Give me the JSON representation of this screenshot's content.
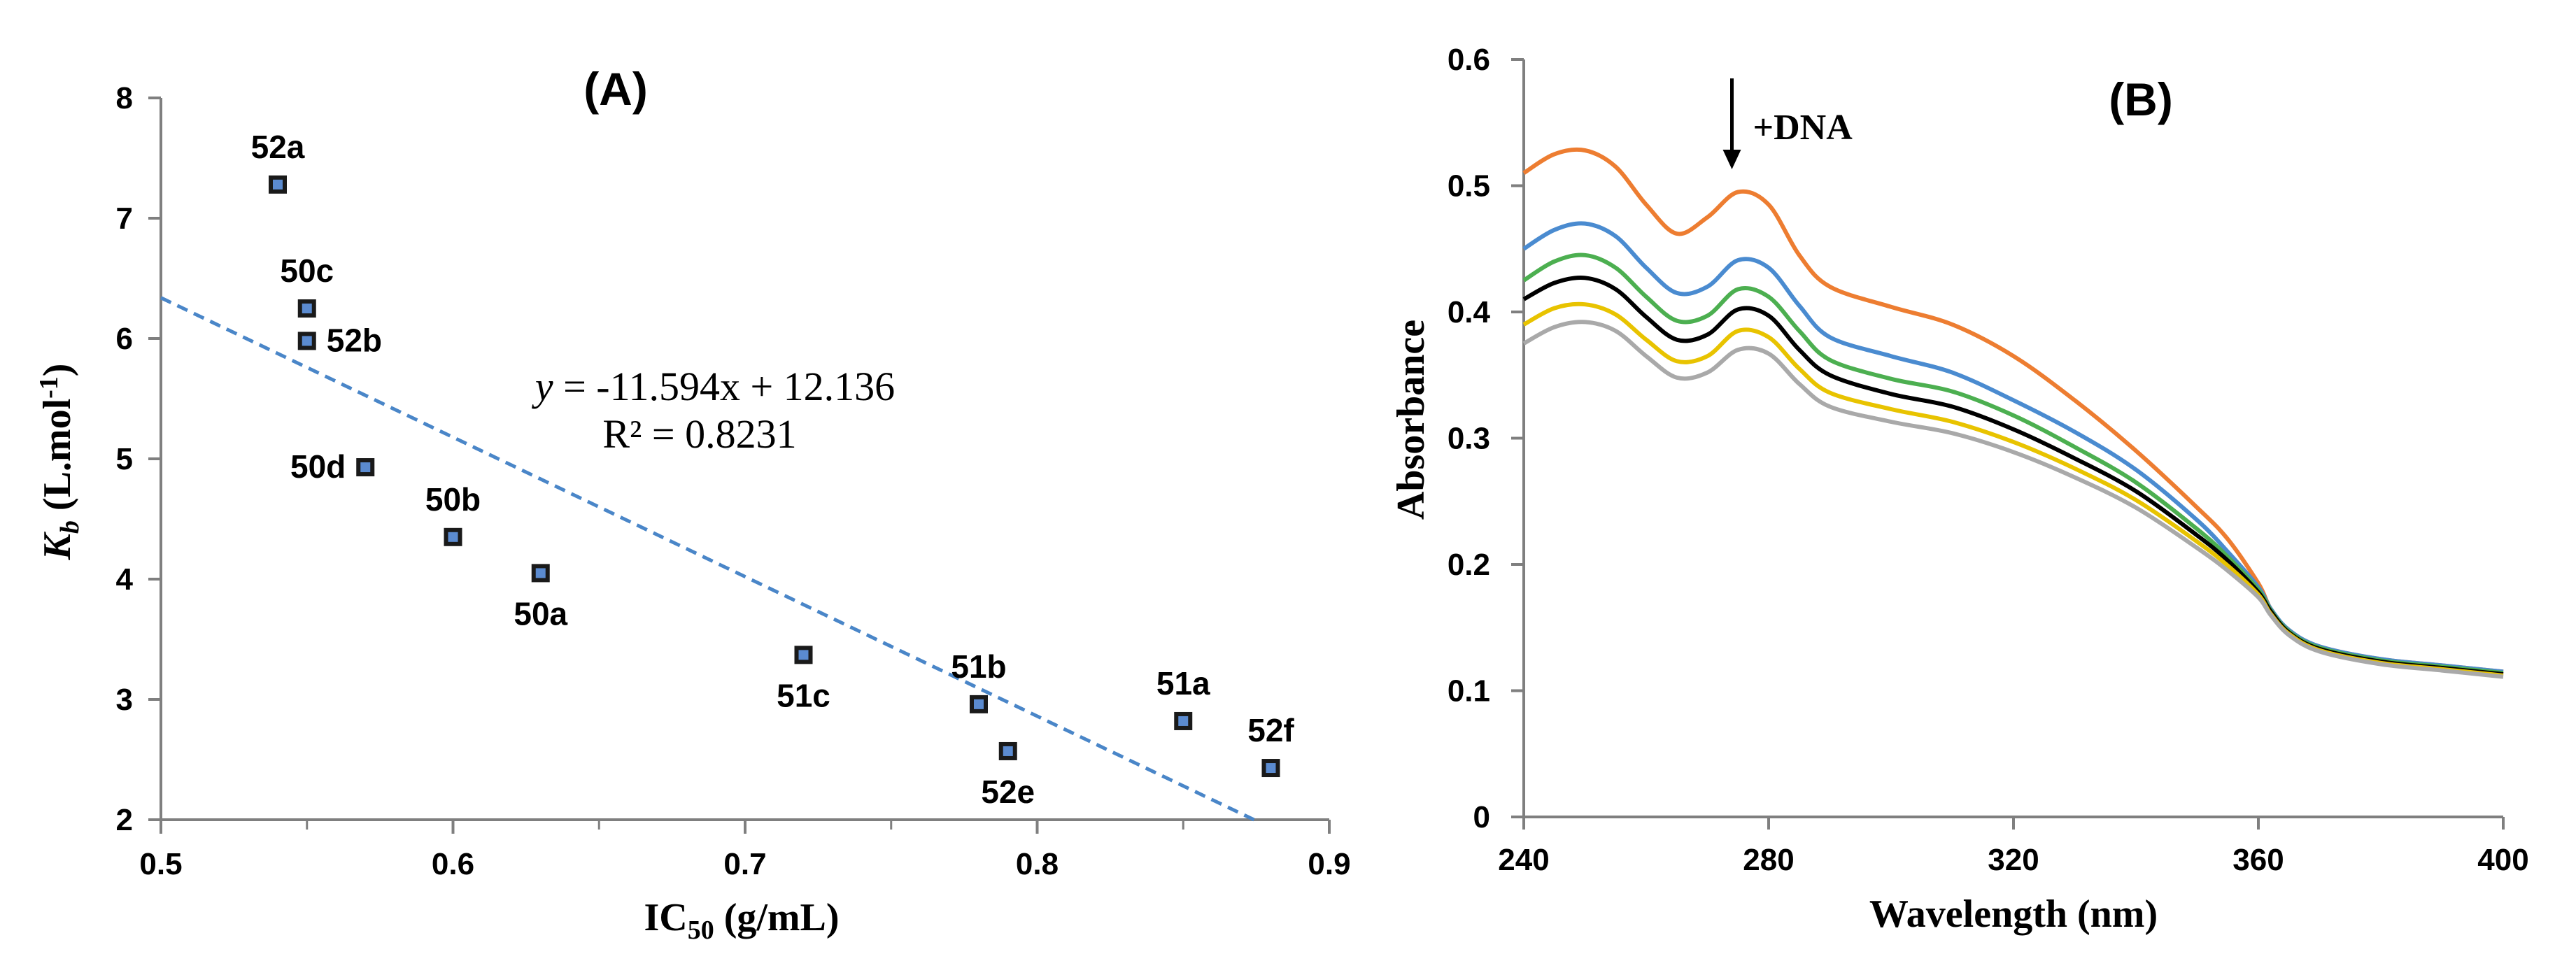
{
  "chart_data": [
    {
      "type": "scatter",
      "panel_label": "(A)",
      "xlabel": {
        "main": "IC",
        "sub": "50",
        "rest": " (g/mL)"
      },
      "ylabel": {
        "main": "K",
        "sub": "b",
        "rest": " (L.mol",
        "sup": "-1",
        "close": ")"
      },
      "xlim": [
        0.5,
        0.9
      ],
      "ylim": [
        2,
        8
      ],
      "x_ticks": [
        0.5,
        0.6,
        0.7,
        0.8,
        0.9
      ],
      "x_tick_labels": [
        "0.5",
        "0.6",
        "0.7",
        "0.8",
        "0.9"
      ],
      "y_ticks": [
        2,
        3,
        4,
        5,
        6,
        7,
        8
      ],
      "y_tick_labels": [
        "2",
        "3",
        "4",
        "5",
        "6",
        "7",
        "8"
      ],
      "points": [
        {
          "label": "52a",
          "x": 0.54,
          "y": 7.28,
          "label_pos": "above"
        },
        {
          "label": "50c",
          "x": 0.55,
          "y": 6.25,
          "label_pos": "above"
        },
        {
          "label": "52b",
          "x": 0.55,
          "y": 5.98,
          "label_pos": "right"
        },
        {
          "label": "50d",
          "x": 0.57,
          "y": 4.93,
          "label_pos": "left"
        },
        {
          "label": "50b",
          "x": 0.6,
          "y": 4.35,
          "label_pos": "above"
        },
        {
          "label": "50a",
          "x": 0.63,
          "y": 4.05,
          "label_pos": "below"
        },
        {
          "label": "51c",
          "x": 0.72,
          "y": 3.37,
          "label_pos": "below"
        },
        {
          "label": "51b",
          "x": 0.78,
          "y": 2.96,
          "label_pos": "above"
        },
        {
          "label": "52e",
          "x": 0.79,
          "y": 2.57,
          "label_pos": "below"
        },
        {
          "label": "51a",
          "x": 0.85,
          "y": 2.82,
          "label_pos": "above"
        },
        {
          "label": "52f",
          "x": 0.88,
          "y": 2.43,
          "label_pos": "above"
        }
      ],
      "trendline": {
        "slope": -11.594,
        "intercept": 12.136,
        "x_start": 0.5,
        "color": "#4a86c8"
      },
      "equation": "-11.594x + 12.136",
      "r_squared": "R² = 0.8231",
      "marker_color": "#1a1a1a",
      "marker_fill": "#5b8bd0"
    },
    {
      "type": "line",
      "panel_label": "(B)",
      "xlabel": "Wavelength (nm)",
      "ylabel": "Absorbance",
      "xlim": [
        240,
        400
      ],
      "ylim": [
        0,
        0.6
      ],
      "x_ticks": [
        240,
        280,
        320,
        360,
        400
      ],
      "x_tick_labels": [
        "240",
        "280",
        "320",
        "360",
        "400"
      ],
      "y_ticks": [
        0,
        0.1,
        0.2,
        0.3,
        0.4,
        0.5,
        0.6
      ],
      "y_tick_labels": [
        "0",
        "0.1",
        "0.2",
        "0.3",
        "0.4",
        "0.5",
        "0.6"
      ],
      "annotation": {
        "text": "+DNA",
        "x": 274,
        "y_from": 0.585,
        "y_to": 0.513
      },
      "series": [
        {
          "name": "orange",
          "color": "#ed7d31",
          "x": [
            240,
            245,
            250,
            255,
            260,
            265,
            270,
            275,
            280,
            285,
            290,
            300,
            310,
            320,
            330,
            340,
            350,
            355,
            360,
            362,
            365,
            370,
            380,
            390,
            400
          ],
          "y": [
            0.51,
            0.525,
            0.528,
            0.515,
            0.485,
            0.462,
            0.475,
            0.495,
            0.485,
            0.445,
            0.42,
            0.404,
            0.39,
            0.365,
            0.33,
            0.29,
            0.245,
            0.22,
            0.185,
            0.165,
            0.148,
            0.135,
            0.125,
            0.12,
            0.115
          ]
        },
        {
          "name": "blue",
          "color": "#4a8bd0",
          "x": [
            240,
            245,
            250,
            255,
            260,
            265,
            270,
            275,
            280,
            285,
            290,
            300,
            310,
            320,
            330,
            340,
            350,
            355,
            360,
            362,
            365,
            370,
            380,
            390,
            400
          ],
          "y": [
            0.45,
            0.465,
            0.47,
            0.46,
            0.435,
            0.415,
            0.42,
            0.441,
            0.435,
            0.405,
            0.38,
            0.365,
            0.352,
            0.33,
            0.305,
            0.275,
            0.235,
            0.21,
            0.182,
            0.165,
            0.148,
            0.135,
            0.125,
            0.12,
            0.115
          ]
        },
        {
          "name": "green",
          "color": "#4caf50",
          "x": [
            240,
            245,
            250,
            255,
            260,
            265,
            270,
            275,
            280,
            285,
            290,
            300,
            310,
            320,
            330,
            340,
            350,
            355,
            360,
            362,
            365,
            370,
            380,
            390,
            400
          ],
          "y": [
            0.425,
            0.44,
            0.445,
            0.435,
            0.412,
            0.393,
            0.397,
            0.418,
            0.412,
            0.385,
            0.362,
            0.347,
            0.337,
            0.318,
            0.293,
            0.265,
            0.228,
            0.206,
            0.18,
            0.164,
            0.147,
            0.134,
            0.124,
            0.119,
            0.114
          ]
        },
        {
          "name": "black",
          "color": "#000000",
          "x": [
            240,
            245,
            250,
            255,
            260,
            265,
            270,
            275,
            280,
            285,
            290,
            300,
            310,
            320,
            330,
            340,
            350,
            355,
            360,
            362,
            365,
            370,
            380,
            390,
            400
          ],
          "y": [
            0.41,
            0.423,
            0.427,
            0.418,
            0.396,
            0.378,
            0.382,
            0.402,
            0.397,
            0.37,
            0.35,
            0.335,
            0.325,
            0.307,
            0.284,
            0.258,
            0.223,
            0.203,
            0.178,
            0.163,
            0.146,
            0.133,
            0.123,
            0.118,
            0.113
          ]
        },
        {
          "name": "yellow",
          "color": "#e8c300",
          "x": [
            240,
            245,
            250,
            255,
            260,
            265,
            270,
            275,
            280,
            285,
            290,
            300,
            310,
            320,
            330,
            340,
            350,
            355,
            360,
            362,
            365,
            370,
            380,
            390,
            400
          ],
          "y": [
            0.39,
            0.403,
            0.406,
            0.398,
            0.378,
            0.361,
            0.365,
            0.385,
            0.38,
            0.355,
            0.336,
            0.323,
            0.313,
            0.297,
            0.276,
            0.251,
            0.218,
            0.199,
            0.176,
            0.161,
            0.145,
            0.132,
            0.122,
            0.117,
            0.112
          ]
        },
        {
          "name": "gray",
          "color": "#a9a9a9",
          "x": [
            240,
            245,
            250,
            255,
            260,
            265,
            270,
            275,
            280,
            285,
            290,
            300,
            310,
            320,
            330,
            340,
            350,
            355,
            360,
            362,
            365,
            370,
            380,
            390,
            400
          ],
          "y": [
            0.375,
            0.388,
            0.392,
            0.385,
            0.365,
            0.348,
            0.352,
            0.37,
            0.367,
            0.343,
            0.325,
            0.313,
            0.304,
            0.289,
            0.269,
            0.245,
            0.213,
            0.195,
            0.174,
            0.16,
            0.144,
            0.131,
            0.121,
            0.116,
            0.111
          ]
        }
      ]
    }
  ]
}
